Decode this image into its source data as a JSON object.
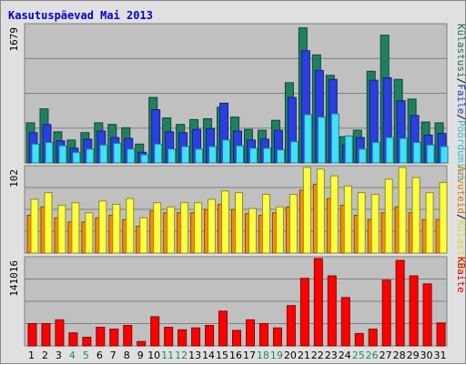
{
  "title": "Kasutuspäevad Mai 2013",
  "colors": {
    "panel_bg": "#c0c0c0",
    "weekday_label": "#000000",
    "weekend_label": "#228855",
    "title": "#0000cc"
  },
  "chart_data": [
    {
      "type": "bar",
      "panel": "top",
      "y_max_label": "1679",
      "ylim": [
        0,
        1679
      ],
      "x": [
        1,
        2,
        3,
        4,
        5,
        6,
        7,
        8,
        9,
        10,
        11,
        12,
        13,
        14,
        15,
        16,
        17,
        18,
        19,
        20,
        21,
        22,
        23,
        24,
        25,
        26,
        27,
        28,
        29,
        30,
        31
      ],
      "series": [
        {
          "name": "Külastusi",
          "color": "#1f8060",
          "values": [
            490,
            660,
            380,
            280,
            370,
            490,
            470,
            430,
            230,
            800,
            550,
            470,
            530,
            540,
            680,
            560,
            410,
            400,
            520,
            980,
            1650,
            1320,
            1070,
            320,
            400,
            1120,
            1560,
            1020,
            780,
            500,
            490
          ]
        },
        {
          "name": "Faile",
          "color": "#2a3fe0",
          "values": [
            370,
            470,
            270,
            180,
            290,
            390,
            310,
            300,
            130,
            650,
            380,
            370,
            410,
            420,
            730,
            390,
            280,
            290,
            400,
            800,
            1370,
            1130,
            1020,
            220,
            310,
            1010,
            1040,
            760,
            580,
            340,
            360
          ]
        },
        {
          "name": "Pöördumisi",
          "color": "#40e0ff",
          "values": [
            230,
            250,
            210,
            130,
            170,
            220,
            240,
            170,
            100,
            230,
            170,
            200,
            170,
            200,
            280,
            210,
            180,
            180,
            160,
            260,
            590,
            560,
            600,
            330,
            170,
            250,
            310,
            300,
            250,
            220,
            200
          ]
        }
      ],
      "legend": [
        "Külastusi",
        "/",
        "Faile",
        "/",
        "Pöördumisi"
      ]
    },
    {
      "type": "bar",
      "panel": "middle",
      "y_max_label": "102",
      "ylim": [
        0,
        102
      ],
      "x": [
        1,
        2,
        3,
        4,
        5,
        6,
        7,
        8,
        9,
        10,
        11,
        12,
        13,
        14,
        15,
        16,
        17,
        18,
        19,
        20,
        21,
        22,
        23,
        24,
        25,
        26,
        27,
        28,
        29,
        30,
        31
      ],
      "series": [
        {
          "name": "Arvuteid",
          "color": "#ff8c00",
          "values": [
            45,
            55,
            42,
            37,
            37,
            42,
            45,
            40,
            32,
            50,
            48,
            48,
            48,
            52,
            58,
            52,
            47,
            45,
            48,
            55,
            75,
            82,
            65,
            57,
            45,
            40,
            48,
            55,
            48,
            40,
            40
          ]
        },
        {
          "name": "Külastusi",
          "color": "#ffff40",
          "values": [
            64,
            72,
            57,
            60,
            48,
            62,
            58,
            65,
            42,
            60,
            55,
            60,
            60,
            64,
            74,
            72,
            53,
            70,
            55,
            70,
            102,
            100,
            92,
            80,
            72,
            70,
            88,
            102,
            90,
            72,
            84
          ]
        }
      ],
      "legend": [
        "Arvuteid",
        "/",
        "Külastusi"
      ]
    },
    {
      "type": "bar",
      "panel": "bottom",
      "y_max_label": "141016",
      "ylim": [
        0,
        141016
      ],
      "x": [
        1,
        2,
        3,
        4,
        5,
        6,
        7,
        8,
        9,
        10,
        11,
        12,
        13,
        14,
        15,
        16,
        17,
        18,
        19,
        20,
        21,
        22,
        23,
        24,
        25,
        26,
        27,
        28,
        29,
        30,
        31
      ],
      "series": [
        {
          "name": "KBaite",
          "color": "#ff0000",
          "values": [
            36000,
            36000,
            42000,
            21000,
            14000,
            30000,
            27000,
            33000,
            7000,
            47000,
            30000,
            26000,
            29000,
            33000,
            56000,
            25000,
            42000,
            36000,
            29000,
            65000,
            109000,
            141000,
            113000,
            78000,
            20000,
            27000,
            106000,
            138000,
            113000,
            100000,
            37000
          ]
        }
      ],
      "legend": [
        "KBaite"
      ]
    }
  ],
  "x_labels": [
    "1",
    "2",
    "3",
    "4",
    "5",
    "6",
    "7",
    "8",
    "9",
    "10",
    "11",
    "12",
    "13",
    "14",
    "15",
    "16",
    "17",
    "18",
    "19",
    "20",
    "21",
    "22",
    "23",
    "24",
    "25",
    "26",
    "27",
    "28",
    "29",
    "30",
    "31"
  ],
  "weekend_days": [
    4,
    5,
    11,
    12,
    18,
    19,
    25,
    26
  ]
}
